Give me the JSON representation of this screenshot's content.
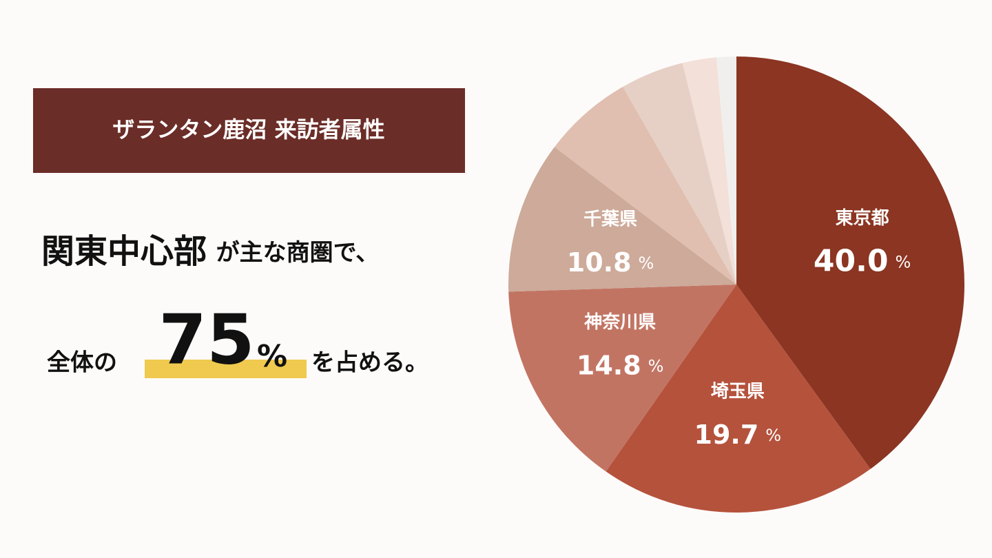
{
  "title": "ザランタン鹿沼 来訪者属性",
  "headline": {
    "line1": {
      "emphasis": "関東中心部",
      "rest": "が主な商圏で、"
    },
    "line2": {
      "lead": "全体の",
      "number": "75",
      "unit": "%",
      "rest": "を占める。"
    }
  },
  "chart_data": {
    "type": "pie",
    "categories": [
      "東京都",
      "埼玉県",
      "神奈川県",
      "千葉県",
      null,
      null,
      null,
      null
    ],
    "values": [
      40.0,
      19.7,
      14.8,
      10.8,
      6.4,
      4.5,
      2.4,
      1.4
    ],
    "value_labels": [
      "40.0",
      "19.7",
      "14.8",
      "10.8",
      null,
      null,
      null,
      null
    ],
    "unit": "%",
    "colors": [
      "#8b3522",
      "#b5523c",
      "#c27463",
      "#cdaa99",
      "#e0bfb0",
      "#e6d0c6",
      "#f3e0d8",
      "#f1efed"
    ]
  }
}
